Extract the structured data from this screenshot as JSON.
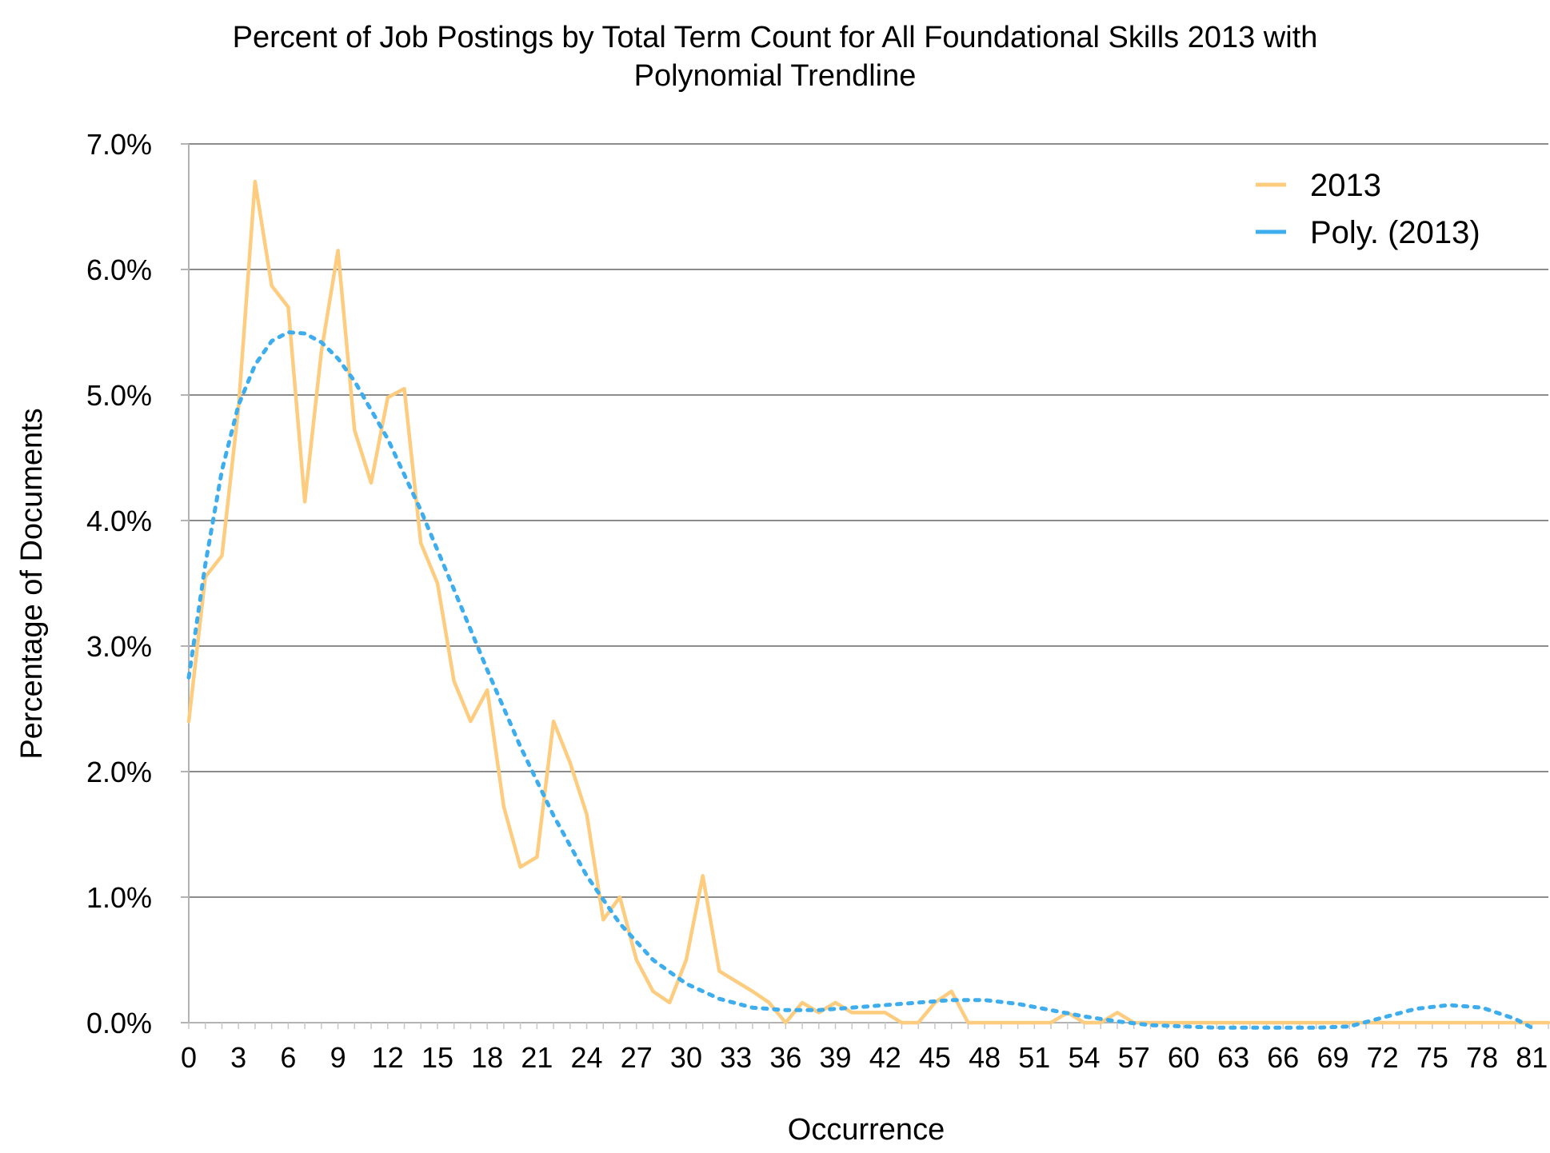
{
  "chart_data": {
    "type": "line",
    "title_line1": "Percent of Job Postings by Total Term Count for All Foundational Skills 2013 with",
    "title_line2": "Polynomial Trendline",
    "xlabel": "Occurrence",
    "ylabel": "Percentage of Documents",
    "x_tick_labels": [
      "0",
      "3",
      "6",
      "9",
      "12",
      "15",
      "18",
      "21",
      "24",
      "27",
      "30",
      "33",
      "36",
      "39",
      "42",
      "45",
      "48",
      "51",
      "54",
      "57",
      "60",
      "63",
      "66",
      "69",
      "72",
      "75",
      "78",
      "81"
    ],
    "y_tick_labels": [
      "0.0%",
      "1.0%",
      "2.0%",
      "3.0%",
      "4.0%",
      "5.0%",
      "6.0%",
      "7.0%"
    ],
    "xlim": [
      0,
      82
    ],
    "ylim": [
      0,
      7
    ],
    "grid": "horizontal",
    "legend_position": "top-right",
    "colors": {
      "series": "#FDCC7E",
      "trend": "#3DADEE",
      "grid": "#8C8C8C"
    },
    "series": [
      {
        "name": "2013",
        "x": [
          0,
          1,
          2,
          3,
          4,
          5,
          6,
          7,
          8,
          9,
          10,
          11,
          12,
          13,
          14,
          15,
          16,
          17,
          18,
          19,
          20,
          21,
          22,
          23,
          24,
          25,
          26,
          27,
          28,
          29,
          30,
          31,
          32,
          33,
          34,
          35,
          36,
          37,
          38,
          39,
          40,
          41,
          42,
          43,
          44,
          45,
          46,
          47,
          48,
          49,
          50,
          51,
          52,
          53,
          54,
          55,
          56,
          57,
          58,
          59,
          60,
          61,
          62,
          63,
          64,
          65,
          66,
          67,
          68,
          69,
          70,
          71,
          72,
          73,
          74,
          75,
          76,
          77,
          78,
          79,
          80,
          81,
          82
        ],
        "values": [
          2.4,
          3.55,
          3.72,
          4.9,
          6.7,
          5.87,
          5.7,
          4.15,
          5.35,
          6.15,
          4.72,
          4.3,
          4.98,
          5.05,
          3.82,
          3.5,
          2.72,
          2.4,
          2.65,
          1.72,
          1.24,
          1.32,
          2.4,
          2.07,
          1.66,
          0.82,
          1.0,
          0.5,
          0.25,
          0.16,
          0.5,
          1.17,
          0.41,
          0.33,
          0.25,
          0.16,
          0.0,
          0.16,
          0.08,
          0.16,
          0.08,
          0.08,
          0.08,
          0.0,
          0.0,
          0.16,
          0.25,
          0.0,
          0.0,
          0.0,
          0.0,
          0.0,
          0.0,
          0.08,
          0.0,
          0.0,
          0.08,
          0.0,
          0.0,
          0.0,
          0.0,
          0.0,
          0.0,
          0.0,
          0.0,
          0.0,
          0.0,
          0.0,
          0.0,
          0.0,
          0.0,
          0.0,
          0.0,
          0.0,
          0.0,
          0.0,
          0.0,
          0.0,
          0.0,
          0.0,
          0.0,
          0.0,
          0.0
        ]
      },
      {
        "name": "Poly. (2013)",
        "style": "dashed",
        "x": [
          0,
          1,
          2,
          3,
          4,
          5,
          6,
          7,
          8,
          9,
          10,
          12,
          14,
          16,
          18,
          20,
          22,
          24,
          26,
          28,
          30,
          32,
          34,
          36,
          38,
          40,
          42,
          44,
          46,
          48,
          50,
          52,
          54,
          56,
          58,
          60,
          62,
          64,
          66,
          68,
          70,
          72,
          74,
          76,
          78,
          80,
          81
        ],
        "values": [
          2.75,
          3.65,
          4.4,
          4.92,
          5.24,
          5.43,
          5.5,
          5.49,
          5.42,
          5.29,
          5.11,
          4.65,
          4.08,
          3.45,
          2.81,
          2.2,
          1.65,
          1.17,
          0.79,
          0.5,
          0.31,
          0.19,
          0.12,
          0.1,
          0.1,
          0.12,
          0.14,
          0.16,
          0.18,
          0.18,
          0.15,
          0.1,
          0.05,
          0.01,
          -0.02,
          -0.03,
          -0.04,
          -0.04,
          -0.04,
          -0.04,
          -0.03,
          0.04,
          0.11,
          0.14,
          0.12,
          0.03,
          -0.04
        ]
      }
    ]
  }
}
